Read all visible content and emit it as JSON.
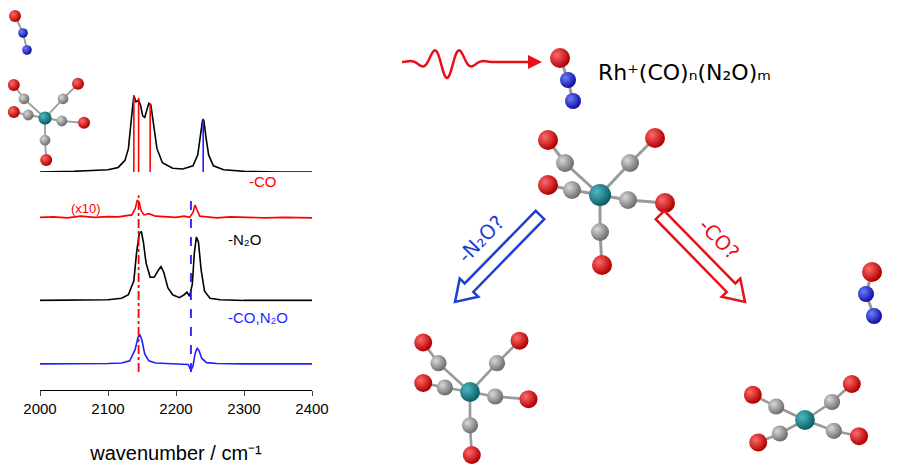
{
  "chart_data": {
    "type": "line",
    "xlabel": "wavenumber / cm⁻¹",
    "xlim": [
      2000,
      2400
    ],
    "xticks": [
      2000,
      2100,
      2200,
      2300,
      2400
    ],
    "tick_labels": "x",
    "series": [
      {
        "color": "#000000",
        "ylim": [
          0,
          1.05
        ],
        "x": [
          2000,
          2050,
          2100,
          2115,
          2125,
          2130,
          2134,
          2138,
          2141,
          2145,
          2148,
          2151,
          2154,
          2157,
          2160,
          2163,
          2167,
          2172,
          2180,
          2195,
          2210,
          2225,
          2232,
          2236,
          2239,
          2240,
          2241,
          2244,
          2248,
          2255,
          2270,
          2300,
          2350,
          2400
        ],
        "values": [
          0,
          0.01,
          0.03,
          0.06,
          0.15,
          0.3,
          0.65,
          0.98,
          0.9,
          0.92,
          0.85,
          0.72,
          0.7,
          0.78,
          0.88,
          0.86,
          0.6,
          0.3,
          0.12,
          0.05,
          0.04,
          0.08,
          0.22,
          0.5,
          0.66,
          0.68,
          0.66,
          0.45,
          0.22,
          0.08,
          0.03,
          0.01,
          0,
          0
        ],
        "sticks": [
          {
            "x": 2138,
            "value": 0.98,
            "color": "#ff0000"
          },
          {
            "x": 2145,
            "value": 0.95,
            "color": "#ff0000"
          },
          {
            "x": 2162,
            "value": 0.88,
            "color": "#ff0000"
          },
          {
            "x": 2240,
            "value": 0.68,
            "color": "#1f1fff"
          }
        ]
      },
      {
        "name": "-CO",
        "annotations": [
          "(x10)"
        ],
        "color": "#ff0000",
        "ylim": [
          0,
          1
        ],
        "x": [
          2000,
          2020,
          2040,
          2060,
          2080,
          2100,
          2115,
          2125,
          2135,
          2140,
          2143,
          2146,
          2149,
          2153,
          2160,
          2170,
          2185,
          2200,
          2212,
          2220,
          2225,
          2228,
          2231,
          2235,
          2245,
          2260,
          2280,
          2300,
          2330,
          2360,
          2400
        ],
        "values": [
          0.1,
          0.12,
          0.08,
          0.15,
          0.1,
          0.13,
          0.12,
          0.15,
          0.2,
          0.45,
          0.8,
          0.7,
          0.35,
          0.2,
          0.25,
          0.15,
          0.12,
          0.1,
          0.15,
          0.1,
          0.3,
          0.6,
          0.4,
          0.15,
          0.12,
          0.08,
          0.12,
          0.1,
          0.08,
          0.1,
          0.08
        ]
      },
      {
        "name": "-N₂O",
        "color": "#000000",
        "ylim": [
          0,
          1.05
        ],
        "x": [
          2000,
          2050,
          2100,
          2120,
          2130,
          2138,
          2142,
          2146,
          2149,
          2152,
          2156,
          2162,
          2168,
          2174,
          2178,
          2182,
          2188,
          2195,
          2205,
          2212,
          2216,
          2220,
          2224,
          2227,
          2230,
          2233,
          2237,
          2242,
          2250,
          2265,
          2300,
          2350,
          2400
        ],
        "values": [
          0.02,
          0.02,
          0.03,
          0.05,
          0.1,
          0.3,
          0.7,
          0.97,
          1.0,
          0.85,
          0.55,
          0.35,
          0.35,
          0.45,
          0.5,
          0.42,
          0.2,
          0.1,
          0.06,
          0.1,
          0.14,
          0.08,
          0.25,
          0.7,
          0.92,
          0.85,
          0.45,
          0.15,
          0.05,
          0.03,
          0.02,
          0.02,
          0.02
        ]
      },
      {
        "name": "-CO,N₂O",
        "color": "#1f1fff",
        "ylim": [
          -0.25,
          1.05
        ],
        "x": [
          2000,
          2050,
          2100,
          2120,
          2132,
          2140,
          2144,
          2147,
          2150,
          2154,
          2160,
          2170,
          2190,
          2210,
          2218,
          2222,
          2225,
          2228,
          2231,
          2234,
          2238,
          2245,
          2260,
          2300,
          2350,
          2400
        ],
        "values": [
          0.02,
          0.02,
          0.03,
          0.05,
          0.12,
          0.5,
          0.9,
          1.0,
          0.8,
          0.35,
          0.12,
          0.05,
          0.03,
          0.03,
          0.0,
          -0.2,
          -0.05,
          0.35,
          0.55,
          0.45,
          0.2,
          0.06,
          0.03,
          0.02,
          0.02,
          0.02
        ]
      }
    ],
    "reference_lines": [
      {
        "x": 2145,
        "color": "#ff0000",
        "line_style": "dashdot"
      },
      {
        "x": 2222,
        "color": "#1f1fff",
        "line_style": "dashed"
      }
    ]
  },
  "diagram": {
    "formula": "Rh⁺(CO)ₙ(N₂O)ₘ",
    "arrows": [
      {
        "label": "-N₂O?",
        "color": "#1f3fd0"
      },
      {
        "label": "-CO?",
        "color": "#e8101a"
      }
    ]
  }
}
